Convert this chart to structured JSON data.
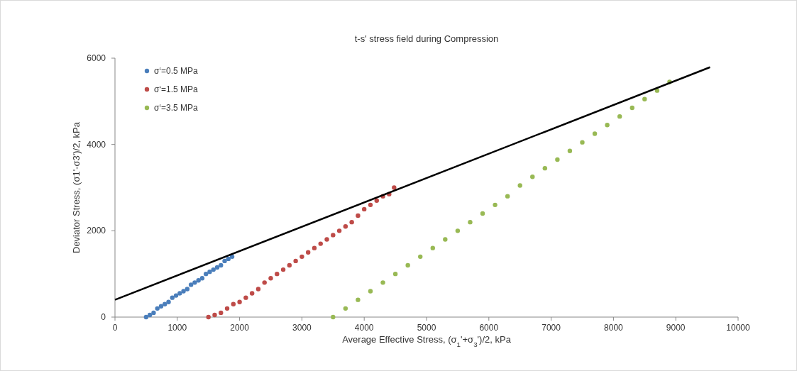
{
  "chart_data": {
    "type": "scatter",
    "title": "t-s' stress field during Compression",
    "xlabel": "Average Effective Stress, (σ$_{1}$'+σ$_{3}$')/2, kPa",
    "ylabel": "Deviator Stress, (σ1'-σ3')/2, kPa",
    "xlim": [
      0,
      10000
    ],
    "xticks": [
      0,
      1000,
      2000,
      3000,
      4000,
      5000,
      6000,
      7000,
      8000,
      9000,
      10000
    ],
    "ylim": [
      0,
      6000
    ],
    "yticks": [
      0,
      2000,
      4000,
      6000
    ],
    "grid": false,
    "legend": "top left",
    "marker": "circle",
    "series": [
      {
        "name": "σ‘=0.5 MPa",
        "color": "#4a7ebb",
        "x": [
          500,
          560,
          620,
          680,
          740,
          800,
          860,
          920,
          980,
          1040,
          1100,
          1160,
          1220,
          1280,
          1340,
          1400,
          1460,
          1520,
          1580,
          1640,
          1700,
          1760,
          1820,
          1880
        ],
        "values": [
          0,
          50,
          100,
          200,
          250,
          300,
          350,
          450,
          500,
          550,
          600,
          650,
          750,
          800,
          850,
          900,
          1000,
          1050,
          1100,
          1150,
          1200,
          1300,
          1350,
          1400
        ]
      },
      {
        "name": "σ‘=1.5 MPa",
        "color": "#be4b48",
        "x": [
          1500,
          1600,
          1700,
          1800,
          1900,
          2000,
          2100,
          2200,
          2300,
          2400,
          2500,
          2600,
          2700,
          2800,
          2900,
          3000,
          3100,
          3200,
          3300,
          3400,
          3500,
          3600,
          3700,
          3800,
          3900,
          4000,
          4100,
          4200,
          4300,
          4400,
          4480
        ],
        "values": [
          0,
          50,
          100,
          200,
          300,
          350,
          450,
          550,
          650,
          800,
          900,
          1000,
          1100,
          1200,
          1300,
          1400,
          1500,
          1600,
          1700,
          1800,
          1900,
          2000,
          2100,
          2200,
          2350,
          2500,
          2600,
          2700,
          2800,
          2850,
          3000
        ]
      },
      {
        "name": "σ‘=3.5 MPa",
        "color": "#98b954",
        "x": [
          3500,
          3700,
          3900,
          4100,
          4300,
          4500,
          4700,
          4900,
          5100,
          5300,
          5500,
          5700,
          5900,
          6100,
          6300,
          6500,
          6700,
          6900,
          7100,
          7300,
          7500,
          7700,
          7900,
          8100,
          8300,
          8500,
          8700,
          8900
        ],
        "values": [
          0,
          200,
          400,
          600,
          800,
          1000,
          1200,
          1400,
          1600,
          1800,
          2000,
          2200,
          2400,
          2600,
          2800,
          3050,
          3250,
          3450,
          3650,
          3850,
          4050,
          4250,
          4450,
          4650,
          4850,
          5050,
          5250,
          5450
        ]
      },
      {
        "type": "line",
        "color": "#000000",
        "x": [
          0,
          9550
        ],
        "values": [
          400,
          5790
        ],
        "marker": "none",
        "line_style": "solid"
      }
    ]
  }
}
